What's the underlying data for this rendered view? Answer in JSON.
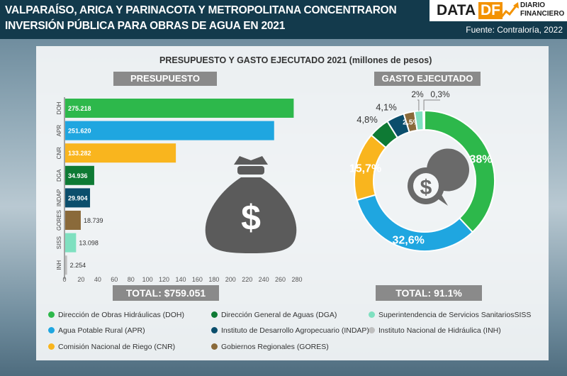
{
  "header": {
    "title_line1": "VALPARAÍSO, ARICA Y PARINACOTA Y METROPOLITANA CONCENTRARON",
    "title_line2": "INVERSIÓN PÚBLICA PARA OBRAS DE AGUA EN 2021",
    "logo_data": "DATA",
    "logo_df": "DF",
    "logo_diario": "DIARIO",
    "logo_financiero": "FINANCIERO",
    "source": "Fuente: Contraloría, 2022"
  },
  "chart_title": "PRESUPUESTO Y GASTO EJECUTADO 2021 (millones de pesos)",
  "colors": {
    "DOH": "#2db84b",
    "APR": "#1fa6e0",
    "CNR": "#f9b51e",
    "DGA": "#0e7a34",
    "INDAP": "#0b4e6c",
    "GORES": "#8a6a3a",
    "SISS": "#7fe0c0",
    "INH": "#bfbfbf"
  },
  "chart_data": [
    {
      "type": "bar",
      "orientation": "horizontal",
      "title": "PRESUPUESTO",
      "categories": [
        "DOH",
        "APR",
        "CNR",
        "DGA",
        "INDAP",
        "GORES",
        "SISS",
        "INH"
      ],
      "values": [
        275.218,
        251.62,
        133.282,
        34.936,
        29.904,
        18.739,
        13.098,
        2.254
      ],
      "value_labels": [
        "275.218",
        "251.620",
        "133.282",
        "34.936",
        "29.904",
        "18.739",
        "13.098",
        "2.254"
      ],
      "xlim": [
        0,
        280
      ],
      "xticks": [
        0,
        20,
        40,
        60,
        80,
        100,
        120,
        140,
        160,
        180,
        200,
        220,
        240,
        260,
        280
      ],
      "total_label": "TOTAL: $759.051"
    },
    {
      "type": "pie",
      "donut": true,
      "title": "GASTO EJECUTADO",
      "categories": [
        "DOH",
        "APR",
        "CNR",
        "DGA",
        "INDAP",
        "GORES",
        "SISS",
        "INH"
      ],
      "values": [
        38,
        32.6,
        15.7,
        4.8,
        4.1,
        2.5,
        2,
        0.3
      ],
      "value_labels": [
        "38%",
        "32,6%",
        "15,7%",
        "4,8%",
        "4,1%",
        "2,5%",
        "2%",
        "0,3%"
      ],
      "total_label": "TOTAL: 91.1%"
    }
  ],
  "legend": [
    {
      "key": "DOH",
      "label": "Dirección de Obras Hidráulicas (DOH)"
    },
    {
      "key": "APR",
      "label": "Agua Potable Rural (APR)"
    },
    {
      "key": "CNR",
      "label": "Comisión Nacional de Riego (CNR)"
    },
    {
      "key": "DGA",
      "label": "Dirección General de Aguas (DGA)"
    },
    {
      "key": "INDAP",
      "label": "Instituto de Desarrollo Agropecuario (INDAP)"
    },
    {
      "key": "GORES",
      "label": "Gobiernos Regionales (GORES)"
    },
    {
      "key": "SISS",
      "label": "Superintendencia de Servicios SanitariosSISS"
    },
    {
      "key": "INH",
      "label": "Instituto Nacional de Hidráulica (INH)"
    }
  ]
}
